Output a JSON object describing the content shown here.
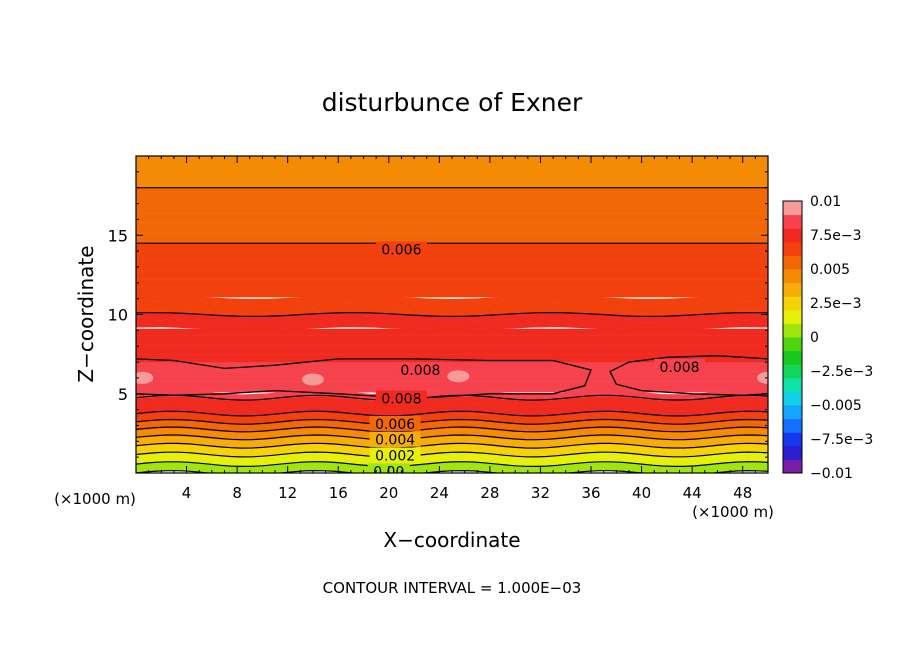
{
  "chart_data": {
    "type": "heatmap",
    "title": "disturbunce of Exner",
    "xlabel": "X−coordinate",
    "ylabel": "Z−coordinate",
    "x_unit": "(×1000 m)",
    "y_unit": "(×1000 m)",
    "footer": "CONTOUR INTERVAL = 1.000E−03",
    "xlim": [
      0,
      50
    ],
    "ylim": [
      0,
      20
    ],
    "x_ticks": [
      4,
      8,
      12,
      16,
      20,
      24,
      28,
      32,
      36,
      40,
      44,
      48
    ],
    "y_ticks": [
      5,
      10,
      15
    ],
    "contour_interval": 0.001,
    "colorbar": {
      "min": -0.01,
      "max": 0.01,
      "labels": [
        {
          "value": 0.01,
          "text": "0.01"
        },
        {
          "value": 0.0075,
          "text": "7.5e−3"
        },
        {
          "value": 0.005,
          "text": "0.005"
        },
        {
          "value": 0.0025,
          "text": "2.5e−3"
        },
        {
          "value": 0,
          "text": "0"
        },
        {
          "value": -0.0025,
          "text": "−2.5e−3"
        },
        {
          "value": -0.005,
          "text": "−0.005"
        },
        {
          "value": -0.0075,
          "text": "−7.5e−3"
        },
        {
          "value": -0.01,
          "text": "−0.01"
        }
      ],
      "colors": [
        "#7a1ea8",
        "#2d1ecf",
        "#1438ee",
        "#1470ff",
        "#12a6ff",
        "#10cfe6",
        "#0fe2a6",
        "#12d65a",
        "#18c81e",
        "#50d410",
        "#a0e60d",
        "#e6f00a",
        "#f6d209",
        "#f7ad07",
        "#f58b04",
        "#f26806",
        "#f2410c",
        "#f02a1e",
        "#f6424c",
        "#f79a9a"
      ]
    },
    "profile": {
      "z": [
        0,
        0.5,
        1,
        1.5,
        2,
        2.5,
        3,
        3.5,
        4,
        4.5,
        5,
        6,
        7,
        8,
        9,
        10,
        11,
        12,
        13,
        14,
        15,
        16,
        17,
        18,
        19,
        20
      ],
      "value": [
        0.0,
        0.0009,
        0.0017,
        0.0026,
        0.0035,
        0.0045,
        0.0055,
        0.0066,
        0.0074,
        0.0079,
        0.0081,
        0.0083,
        0.008,
        0.0077,
        0.0074,
        0.007,
        0.0068,
        0.0066,
        0.0063,
        0.0061,
        0.0059,
        0.0056,
        0.0053,
        0.005,
        0.0046,
        0.0043
      ]
    },
    "contour_labels": [
      {
        "text": "0.006",
        "x": 21,
        "z": 14.1
      },
      {
        "text": "0.008",
        "x": 22.5,
        "z": 6.5
      },
      {
        "text": "0.008",
        "x": 43,
        "z": 6.7
      },
      {
        "text": "0.008",
        "x": 21,
        "z": 4.7
      },
      {
        "text": "0.006",
        "x": 20.5,
        "z": 3.1
      },
      {
        "text": "0.004",
        "x": 20.5,
        "z": 2.1
      },
      {
        "text": "0.002",
        "x": 20.5,
        "z": 1.1
      },
      {
        "text": "0.00",
        "x": 20,
        "z": 0.1
      }
    ]
  }
}
